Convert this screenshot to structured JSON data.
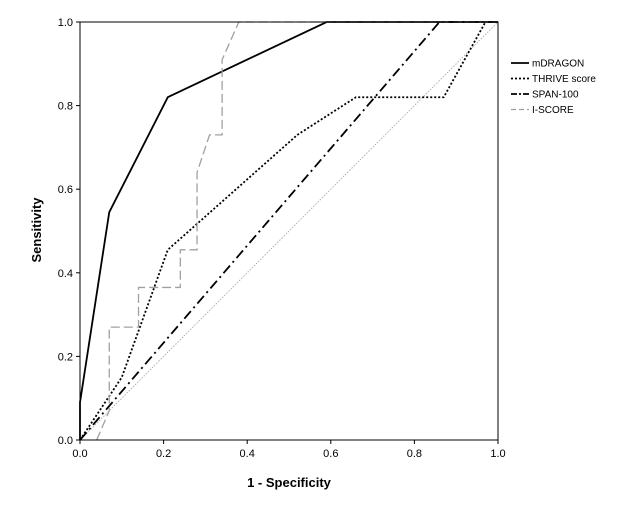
{
  "chart_data": {
    "type": "line",
    "title": "",
    "xlabel": "1 - Specificity",
    "ylabel": "Sensitivity",
    "xlim": [
      0,
      1
    ],
    "ylim": [
      0,
      1
    ],
    "xticks": [
      "0.0",
      "0.2",
      "0.4",
      "0.6",
      "0.8",
      "1.0"
    ],
    "yticks": [
      "0.0",
      "0.2",
      "0.4",
      "0.6",
      "0.8",
      "1.0"
    ],
    "grid": false,
    "legend_position": "right",
    "reference_line": {
      "x": [
        0,
        1
      ],
      "y": [
        0,
        1
      ],
      "color": "#b0b0b0",
      "style": "dotted"
    },
    "series": [
      {
        "name": "mDRAGON",
        "color": "#000000",
        "style": "solid",
        "x": [
          0.0,
          0.0,
          0.07,
          0.21,
          0.59,
          1.0
        ],
        "y": [
          0.0,
          0.09,
          0.545,
          0.82,
          1.0,
          1.0
        ]
      },
      {
        "name": "THRIVE score",
        "color": "#000000",
        "style": "dotted",
        "x": [
          0.0,
          0.1,
          0.21,
          0.52,
          0.66,
          0.87,
          0.97
        ],
        "y": [
          0.0,
          0.15,
          0.455,
          0.73,
          0.82,
          0.82,
          1.0
        ]
      },
      {
        "name": "SPAN-100",
        "color": "#000000",
        "style": "dashdot",
        "x": [
          0.0,
          0.86,
          0.86,
          0.96,
          1.0
        ],
        "y": [
          0.0,
          1.0,
          1.0,
          1.0,
          1.0
        ]
      },
      {
        "name": "I-SCORE",
        "color": "#a0a0a0",
        "style": "dashed",
        "x": [
          0.04,
          0.07,
          0.07,
          0.14,
          0.14,
          0.24,
          0.24,
          0.28,
          0.28,
          0.31,
          0.31,
          0.34,
          0.34,
          0.38,
          0.38,
          1.0
        ],
        "y": [
          0.0,
          0.07,
          0.27,
          0.27,
          0.365,
          0.365,
          0.455,
          0.455,
          0.64,
          0.73,
          0.73,
          0.73,
          0.91,
          1.0,
          1.0,
          1.0
        ]
      }
    ]
  }
}
